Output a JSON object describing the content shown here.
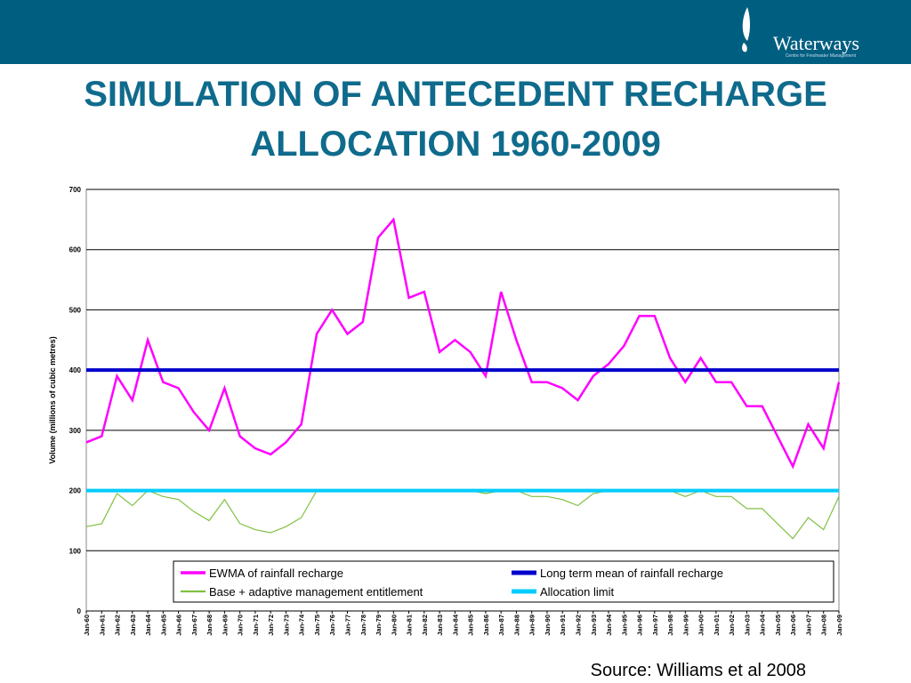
{
  "slide": {
    "title_lines": [
      "SIMULATION OF ANTECEDENT RECHARGE",
      "ALLOCATION 1960-2009"
    ],
    "source": "Source: Williams et al 2008",
    "logo": "Waterways",
    "logo_sub": "Centre for Freshwater Management"
  },
  "chart_data": {
    "type": "line",
    "y_label": "Volume (millions of cubic metres)",
    "categories": [
      "Jan-60",
      "Jan-61",
      "Jan-62",
      "Jan-63",
      "Jan-64",
      "Jan-65",
      "Jan-66",
      "Jan-67",
      "Jan-68",
      "Jan-69",
      "Jan-70",
      "Jan-71",
      "Jan-72",
      "Jan-73",
      "Jan-74",
      "Jan-75",
      "Jan-76",
      "Jan-77",
      "Jan-78",
      "Jan-79",
      "Jan-80",
      "Jan-81",
      "Jan-82",
      "Jan-83",
      "Jan-84",
      "Jan-85",
      "Jan-86",
      "Jan-87",
      "Jan-88",
      "Jan-89",
      "Jan-90",
      "Jan-91",
      "Jan-92",
      "Jan-93",
      "Jan-94",
      "Jan-95",
      "Jan-96",
      "Jan-97",
      "Jan-98",
      "Jan-99",
      "Jan-00",
      "Jan-01",
      "Jan-02",
      "Jan-03",
      "Jan-04",
      "Jan-05",
      "Jan-06",
      "Jan-07",
      "Jan-08",
      "Jan-09"
    ],
    "series": [
      {
        "name": "EWMA of rainfall recharge",
        "color": "#ff00ff",
        "width": 2.5,
        "values": [
          280,
          290,
          390,
          350,
          450,
          380,
          370,
          330,
          300,
          370,
          290,
          270,
          260,
          280,
          310,
          460,
          500,
          460,
          480,
          620,
          650,
          520,
          530,
          430,
          450,
          430,
          390,
          530,
          450,
          380,
          380,
          370,
          350,
          390,
          410,
          440,
          490,
          490,
          420,
          380,
          420,
          380,
          380,
          340,
          340,
          290,
          240,
          310,
          270,
          380
        ]
      },
      {
        "name": "Long term mean of rainfall recharge",
        "color": "#0000cc",
        "width": 4,
        "values": [
          400,
          400,
          400,
          400,
          400,
          400,
          400,
          400,
          400,
          400,
          400,
          400,
          400,
          400,
          400,
          400,
          400,
          400,
          400,
          400,
          400,
          400,
          400,
          400,
          400,
          400,
          400,
          400,
          400,
          400,
          400,
          400,
          400,
          400,
          400,
          400,
          400,
          400,
          400,
          400,
          400,
          400,
          400,
          400,
          400,
          400,
          400,
          400,
          400,
          400
        ]
      },
      {
        "name": "Base + adaptive management entitlement",
        "color": "#80c040",
        "width": 1.2,
        "values": [
          140,
          145,
          195,
          175,
          200,
          190,
          185,
          165,
          150,
          185,
          145,
          135,
          130,
          140,
          155,
          200,
          200,
          200,
          200,
          200,
          200,
          200,
          200,
          200,
          200,
          200,
          195,
          200,
          200,
          190,
          190,
          185,
          175,
          195,
          200,
          200,
          200,
          200,
          200,
          190,
          200,
          190,
          190,
          170,
          170,
          145,
          120,
          155,
          135,
          190
        ]
      },
      {
        "name": "Allocation limit",
        "color": "#00ccff",
        "width": 4,
        "values": [
          200,
          200,
          200,
          200,
          200,
          200,
          200,
          200,
          200,
          200,
          200,
          200,
          200,
          200,
          200,
          200,
          200,
          200,
          200,
          200,
          200,
          200,
          200,
          200,
          200,
          200,
          200,
          200,
          200,
          200,
          200,
          200,
          200,
          200,
          200,
          200,
          200,
          200,
          200,
          200,
          200,
          200,
          200,
          200,
          200,
          200,
          200,
          200,
          200,
          200
        ]
      }
    ],
    "ylim": [
      0,
      700
    ],
    "yticks": [
      0,
      100,
      200,
      300,
      400,
      500,
      600,
      700
    ],
    "grid": true
  }
}
